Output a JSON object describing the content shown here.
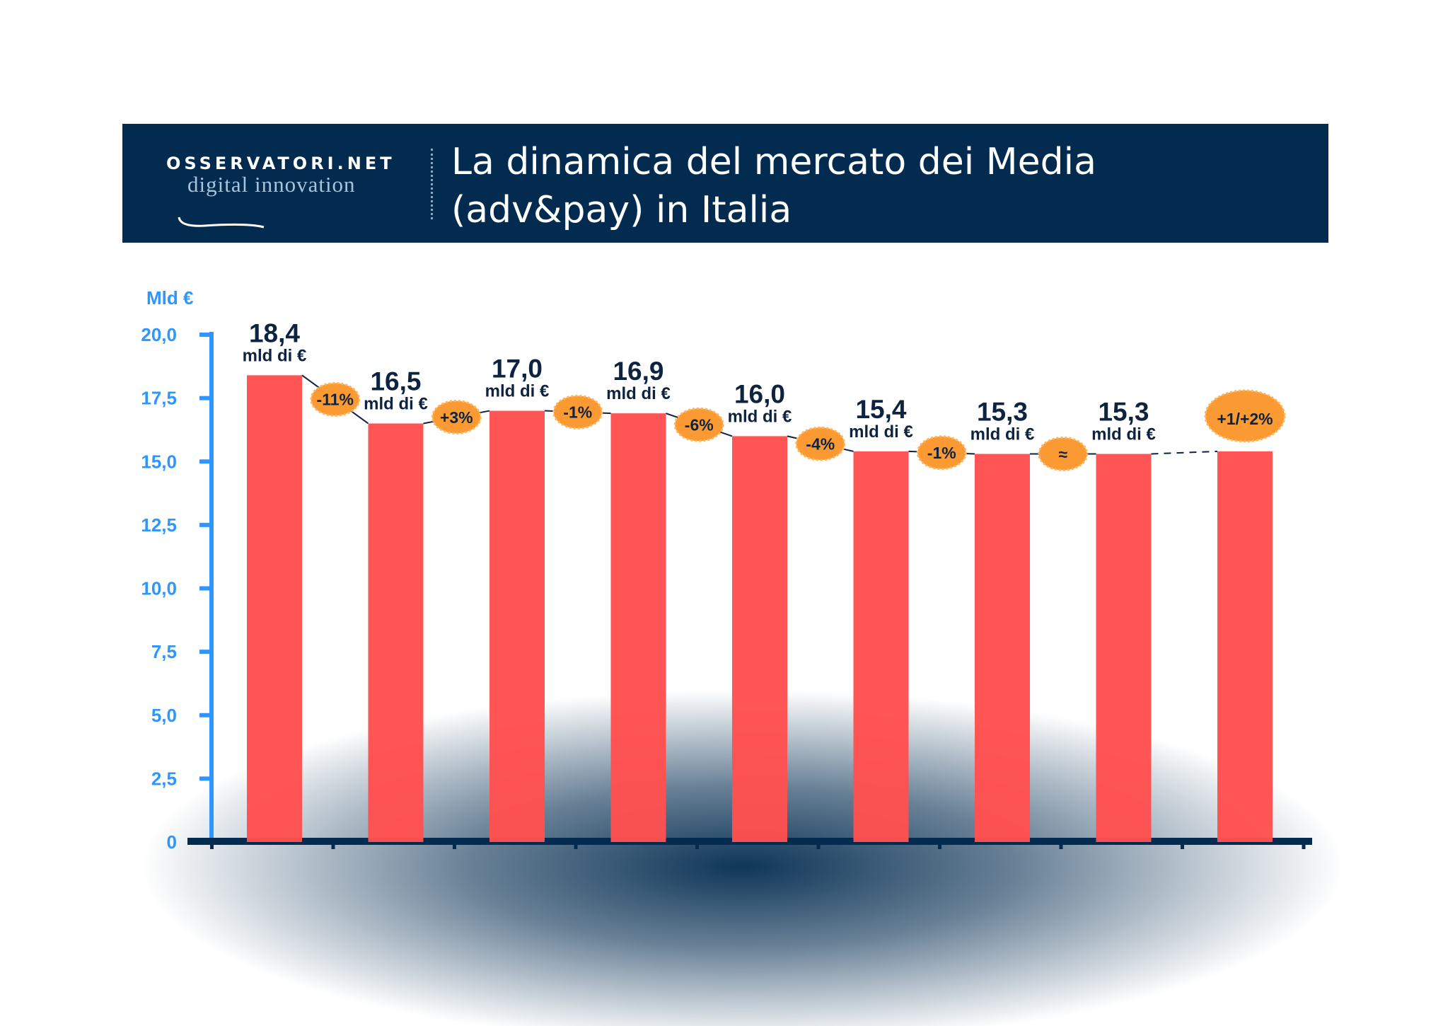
{
  "header": {
    "logo_top": "OSSERVATORI.NET",
    "logo_bottom": "digital innovation",
    "title_line1": "La dinamica del mercato dei Media",
    "title_line2": "(adv&pay) in Italia"
  },
  "chart_data": {
    "type": "bar",
    "title": "La dinamica del mercato dei Media (adv&pay) in Italia",
    "ylabel": "Mld €",
    "ylim": [
      0,
      20
    ],
    "yticks": [
      "0",
      "2,5",
      "5,0",
      "7,5",
      "10,0",
      "12,5",
      "15,0",
      "17,5",
      "20,0"
    ],
    "values": [
      18.4,
      16.5,
      17.0,
      16.9,
      16.0,
      15.4,
      15.3,
      15.3,
      15.4
    ],
    "value_labels": [
      "18,4",
      "16,5",
      "17,0",
      "16,9",
      "16,0",
      "15,4",
      "15,3",
      "15,3",
      ""
    ],
    "unit_label": "mld di €",
    "changes": [
      "-11%",
      "+3%",
      "-1%",
      "-6%",
      "-4%",
      "-1%",
      "≈",
      "+1/+2%"
    ],
    "grid": false,
    "colors": {
      "bar": "#ff5050",
      "axis": "#2f96ff",
      "badge": "#fb9a32",
      "header": "#022b4f"
    }
  }
}
